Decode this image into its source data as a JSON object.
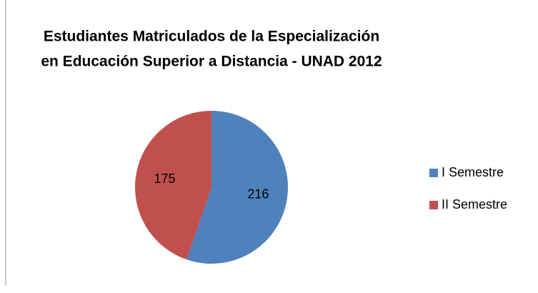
{
  "chart_data": {
    "type": "pie",
    "title": [
      "Estudiantes Matriculados de la Especialización",
      "en Educación Superior a Distancia - UNAD 2012"
    ],
    "categories": [
      "I Semestre",
      "II Semestre"
    ],
    "values": [
      216,
      175
    ],
    "colors": [
      "#4f81bd",
      "#c0504d"
    ],
    "legend": "right"
  }
}
